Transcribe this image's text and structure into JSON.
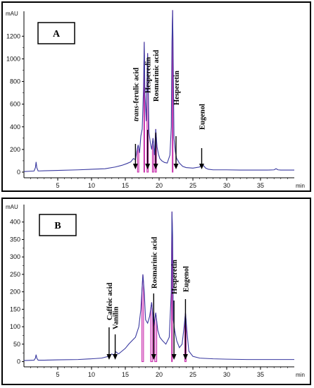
{
  "chart_data": [
    {
      "type": "line",
      "panel_label": "A",
      "ylabel": "mAU",
      "xlabel": "min",
      "xlim": [
        0,
        40
      ],
      "ylim": [
        -50,
        1420
      ],
      "x_ticks": [
        5,
        10,
        15,
        20,
        25,
        30,
        35
      ],
      "y_ticks": [
        0,
        200,
        400,
        600,
        800,
        1000,
        1200
      ],
      "series": [
        {
          "x": [
            0.0,
            1.5,
            1.7,
            1.8,
            1.9,
            2.1,
            3.0,
            5.0,
            8.0,
            10.0,
            12.0,
            13.5,
            14.5,
            15.2,
            15.8,
            16.2,
            16.5,
            16.7,
            16.9,
            17.1,
            17.3,
            17.5,
            17.7,
            17.8,
            17.9,
            18.1,
            18.3,
            18.5,
            18.7,
            18.9,
            19.1,
            19.3,
            19.5,
            19.7,
            19.9,
            20.1,
            20.4,
            20.8,
            21.2,
            21.6,
            21.8,
            21.9,
            22.0,
            22.1,
            22.2,
            22.4,
            22.6,
            23.0,
            23.5,
            24.0,
            25.0,
            26.0,
            26.3,
            26.6,
            26.9,
            27.3,
            28.0,
            30.0,
            32.0,
            34.0,
            36.0,
            37.0,
            37.3,
            37.6,
            38.0,
            40.0
          ],
          "y": [
            5,
            10,
            40,
            90,
            40,
            10,
            12,
            15,
            20,
            25,
            30,
            45,
            60,
            75,
            90,
            120,
            110,
            180,
            240,
            170,
            320,
            380,
            750,
            1150,
            700,
            450,
            1050,
            350,
            260,
            200,
            300,
            150,
            380,
            220,
            160,
            120,
            100,
            85,
            80,
            150,
            400,
            1150,
            1430,
            900,
            300,
            180,
            120,
            80,
            50,
            40,
            35,
            45,
            70,
            55,
            35,
            25,
            20,
            20,
            18,
            18,
            18,
            20,
            30,
            20,
            18,
            18
          ]
        }
      ],
      "annotations": [
        {
          "label": "trans-ferulic acid",
          "x": 16.5
        },
        {
          "label": "Hesperedin",
          "x": 18.3
        },
        {
          "label": "Rosmarinic acid",
          "x": 19.5
        },
        {
          "label": "Hesperetin",
          "x": 22.5
        },
        {
          "label": "Eugenol",
          "x": 26.3
        }
      ]
    },
    {
      "type": "line",
      "panel_label": "B",
      "ylabel": "mAU",
      "xlabel": "min",
      "xlim": [
        0,
        40
      ],
      "ylim": [
        -15,
        450
      ],
      "x_ticks": [
        5,
        10,
        15,
        20,
        25,
        30,
        35
      ],
      "y_ticks": [
        0,
        50,
        100,
        150,
        200,
        250,
        300,
        350,
        400
      ],
      "series": [
        {
          "x": [
            0.0,
            1.5,
            1.7,
            1.8,
            1.9,
            2.1,
            3.0,
            5.0,
            8.0,
            10.0,
            11.5,
            12.5,
            13.0,
            13.3,
            13.6,
            14.0,
            14.5,
            15.0,
            15.5,
            16.0,
            16.5,
            17.0,
            17.3,
            17.6,
            17.8,
            18.0,
            18.3,
            18.6,
            18.9,
            19.2,
            19.5,
            19.8,
            20.1,
            20.5,
            21.0,
            21.5,
            21.8,
            21.9,
            22.0,
            22.1,
            22.3,
            22.6,
            23.0,
            23.4,
            23.7,
            23.9,
            24.1,
            24.4,
            25.0,
            26.0,
            28.0,
            30.0,
            33.0,
            36.0,
            38.0,
            40.0
          ],
          "y": [
            3,
            4,
            10,
            20,
            10,
            4,
            4,
            5,
            6,
            8,
            10,
            15,
            22,
            18,
            28,
            22,
            30,
            38,
            50,
            60,
            70,
            100,
            150,
            250,
            200,
            120,
            110,
            130,
            170,
            100,
            140,
            90,
            70,
            60,
            50,
            70,
            200,
            430,
            360,
            120,
            90,
            60,
            40,
            50,
            100,
            140,
            90,
            30,
            15,
            10,
            8,
            7,
            6,
            6,
            6,
            6
          ]
        }
      ],
      "annotations": [
        {
          "label": "Caffeic acid",
          "x": 12.6
        },
        {
          "label": "Vanilin",
          "x": 13.5
        },
        {
          "label": "Rosmarinic acid",
          "x": 19.2
        },
        {
          "label": "Hesperetin",
          "x": 22.2
        },
        {
          "label": "Eugenol",
          "x": 23.9
        }
      ]
    }
  ]
}
